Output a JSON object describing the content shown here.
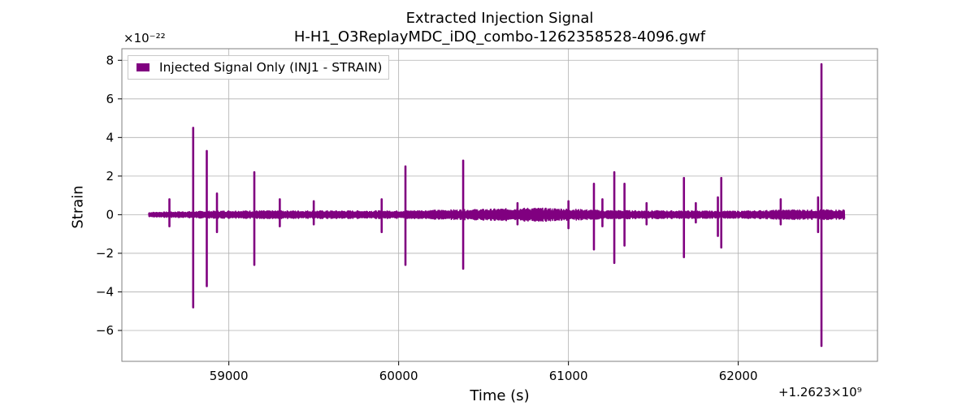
{
  "chart_data": {
    "type": "line",
    "title": "Extracted Injection Signal",
    "subtitle": "H-H1_O3ReplayMDC_iDQ_combo-1262358528-4096.gwf",
    "xlabel": "Time (s)",
    "ylabel": "Strain",
    "y_exponent_label": "×10⁻²²",
    "x_offset_label": "+1.2623×10⁹",
    "x_offset": 1262300000,
    "y_scale": 1e-22,
    "xlim": [
      58370,
      62820
    ],
    "ylim": [
      -7.6,
      8.6
    ],
    "x_ticks": [
      59000,
      60000,
      61000,
      62000
    ],
    "x_tick_labels": [
      "59000",
      "60000",
      "61000",
      "62000"
    ],
    "y_ticks": [
      -6,
      -4,
      -2,
      0,
      2,
      4,
      6,
      8
    ],
    "y_tick_labels": [
      "−6",
      "−4",
      "−2",
      "0",
      "2",
      "4",
      "6",
      "8"
    ],
    "grid": true,
    "legend_position": "top-left",
    "series": [
      {
        "name": "Injected Signal Only (INJ1 - STRAIN)",
        "color": "#800080",
        "x_range": [
          58528,
          62624
        ],
        "background_amplitude": [
          [
            58528,
            0.12
          ],
          [
            58700,
            0.15
          ],
          [
            59000,
            0.2
          ],
          [
            59500,
            0.2
          ],
          [
            60000,
            0.2
          ],
          [
            60500,
            0.28
          ],
          [
            60800,
            0.35
          ],
          [
            61000,
            0.3
          ],
          [
            61200,
            0.22
          ],
          [
            61600,
            0.2
          ],
          [
            62000,
            0.18
          ],
          [
            62300,
            0.25
          ],
          [
            62624,
            0.25
          ]
        ],
        "spikes": [
          [
            58650,
            0.8,
            -0.6
          ],
          [
            58790,
            4.5,
            -4.8
          ],
          [
            58870,
            3.3,
            -3.7
          ],
          [
            58930,
            1.1,
            -0.9
          ],
          [
            59150,
            2.2,
            -2.6
          ],
          [
            59300,
            0.8,
            -0.6
          ],
          [
            59500,
            0.7,
            -0.5
          ],
          [
            59900,
            0.8,
            -0.9
          ],
          [
            60040,
            2.5,
            -2.6
          ],
          [
            60380,
            2.8,
            -2.8
          ],
          [
            60700,
            0.6,
            -0.5
          ],
          [
            61000,
            0.7,
            -0.7
          ],
          [
            61150,
            1.6,
            -1.8
          ],
          [
            61200,
            0.8,
            -0.6
          ],
          [
            61270,
            2.2,
            -2.5
          ],
          [
            61330,
            1.6,
            -1.6
          ],
          [
            61460,
            0.6,
            -0.5
          ],
          [
            61680,
            1.9,
            -2.2
          ],
          [
            61750,
            0.6,
            -0.4
          ],
          [
            61880,
            0.9,
            -1.1
          ],
          [
            61900,
            1.9,
            -1.7
          ],
          [
            62250,
            0.8,
            -0.5
          ],
          [
            62470,
            0.9,
            -0.9
          ],
          [
            62490,
            7.8,
            -6.8
          ]
        ]
      }
    ]
  }
}
